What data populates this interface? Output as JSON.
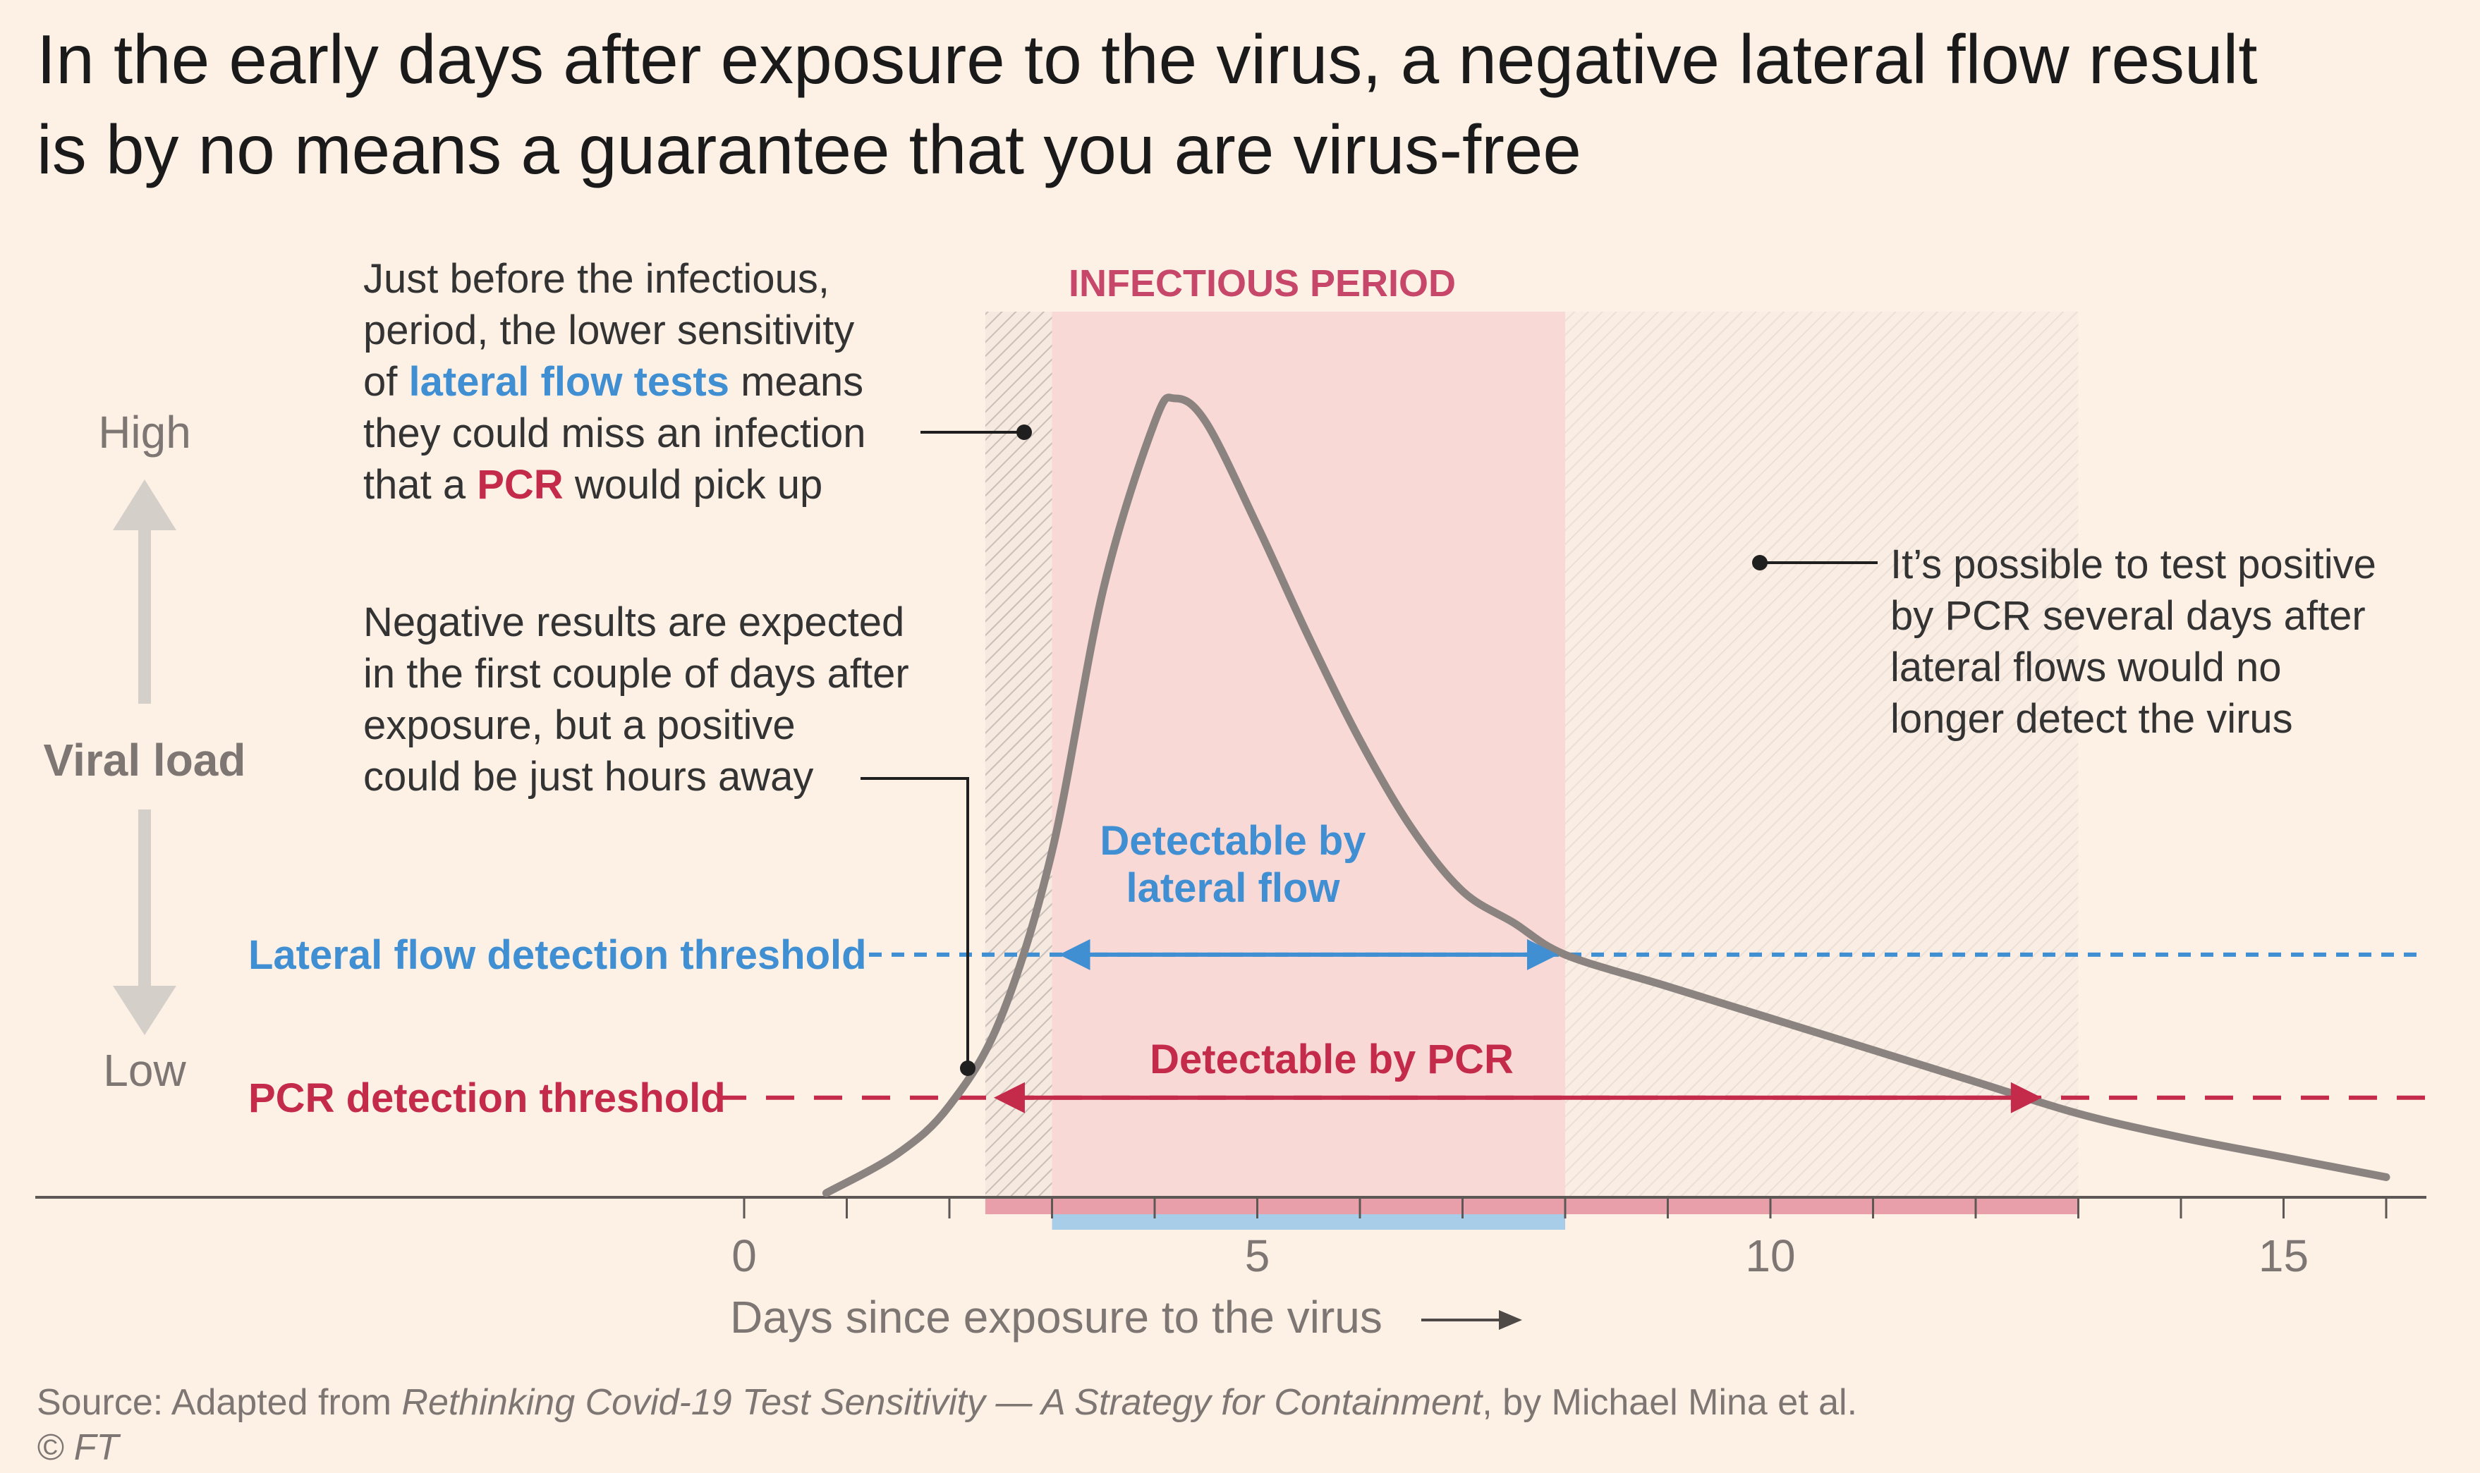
{
  "chart_data": {
    "type": "line",
    "title_lines": [
      "In the early days after exposure to the virus, a negative lateral flow result",
      "is by no means a guarantee that you are virus-free"
    ],
    "xlabel": "Days since exposure to the virus",
    "xlim": [
      0,
      16
    ],
    "x_ticks": [
      0,
      5,
      10,
      15
    ],
    "ylabel": "Viral load",
    "y_high_label": "High",
    "y_low_label": "Low",
    "series": [
      {
        "x": [
          0.8,
          1.5,
          2.0,
          2.5,
          3.0,
          3.5,
          4.0,
          4.2,
          4.5,
          5.0,
          5.5,
          6.0,
          6.5,
          7.0,
          7.5,
          8.0,
          9.0,
          10.0,
          11.0,
          12.0,
          13.0,
          14.0,
          15.0,
          16.0
        ],
        "y": [
          0.0,
          0.05,
          0.11,
          0.22,
          0.43,
          0.76,
          0.97,
          1.0,
          0.97,
          0.84,
          0.7,
          0.57,
          0.46,
          0.38,
          0.34,
          0.3,
          0.26,
          0.22,
          0.18,
          0.14,
          0.1,
          0.07,
          0.045,
          0.02
        ]
      }
    ],
    "thresholds": [
      {
        "name": "Lateral flow detection threshold",
        "y": 0.3,
        "color": "#3f8fd2",
        "style": "dotted"
      },
      {
        "name": "PCR detection threshold",
        "y": 0.12,
        "color": "#c42a49",
        "style": "dashed"
      }
    ],
    "infectious_period": {
      "label": "INFECTIOUS PERIOD",
      "start": 3.0,
      "end": 8.0
    },
    "hatched_regions": [
      [
        2.35,
        3.0
      ],
      [
        8.0,
        13.0
      ]
    ],
    "detectable_by_lateral_flow": {
      "label_lines": [
        "Detectable by",
        "lateral flow"
      ],
      "start": 3.0,
      "end": 8.0,
      "color": "#3f8fd2"
    },
    "detectable_by_pcr": {
      "label": "Detectable by PCR",
      "start": 2.35,
      "end": 12.7,
      "color": "#c42a49"
    },
    "annotations": [
      {
        "id": "lateral-flow-sensitivity",
        "lines": [
          [
            {
              "text": "Just before the infectious,"
            }
          ],
          [
            {
              "text": "period, the lower sensitivity"
            }
          ],
          [
            {
              "text": "of "
            },
            {
              "text": "lateral flow tests",
              "color": "#3f8fd2",
              "bold": true
            },
            {
              "text": " means"
            }
          ],
          [
            {
              "text": "they could miss an infection"
            }
          ],
          [
            {
              "text": "that a "
            },
            {
              "text": "PCR",
              "color": "#c42a49",
              "bold": true
            },
            {
              "text": " would pick up"
            }
          ]
        ]
      },
      {
        "id": "negative-results",
        "lines": [
          [
            {
              "text": "Negative results are expected"
            }
          ],
          [
            {
              "text": "in the first couple of days after"
            }
          ],
          [
            {
              "text": "exposure, but a positive"
            }
          ],
          [
            {
              "text": "could be just hours away"
            }
          ]
        ]
      },
      {
        "id": "pcr-after",
        "lines": [
          [
            {
              "text": "It’s possible to test positive"
            }
          ],
          [
            {
              "text": "by PCR several days after"
            }
          ],
          [
            {
              "text": "lateral flows would no"
            }
          ],
          [
            {
              "text": "longer detect the virus"
            }
          ]
        ]
      }
    ],
    "source_prefix": "Source: Adapted from ",
    "source_title": "Rethinking Covid-19 Test Sensitivity — A Strategy for Containment",
    "source_suffix": ", by Michael Mina et al.",
    "copyright": "© FT",
    "colors": {
      "background": "#fdf1e6",
      "infectious_fill": "#f9d9d6",
      "infectious_label": "#c7476a",
      "curve": "#8a8380",
      "text": "#333333",
      "muted_text": "#7d7673",
      "arrow": "#d5cfca",
      "lateral_flow": "#3f8fd2",
      "pcr": "#c42a49",
      "pcr_bar": "#e99fa9",
      "lateral_bar": "#a8cde8"
    }
  }
}
